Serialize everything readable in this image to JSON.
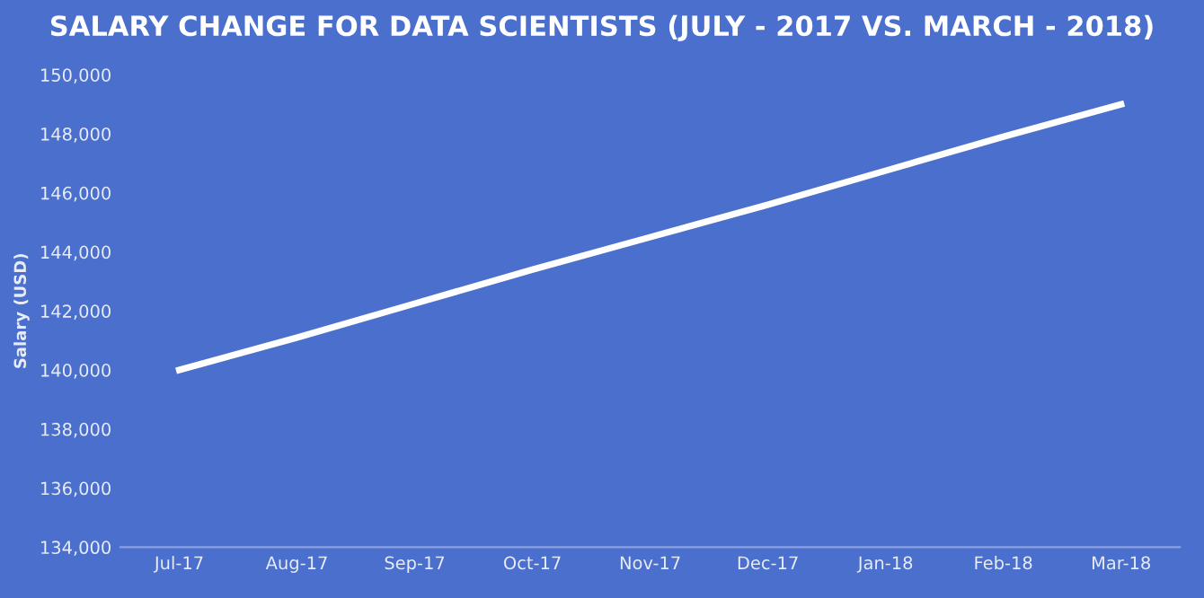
{
  "chart_data": {
    "type": "line",
    "title": "SALARY CHANGE FOR DATA SCIENTISTS (JULY - 2017 VS. MARCH - 2018)",
    "ylabel": "Salary (USD)",
    "categories": [
      "Jul-17",
      "Aug-17",
      "Sep-17",
      "Oct-17",
      "Nov-17",
      "Dec-17",
      "Jan-18",
      "Feb-18",
      "Mar-18"
    ],
    "series": [
      {
        "color": "#ffffff",
        "values": [
          140000,
          141100,
          142250,
          143400,
          144500,
          145600,
          146750,
          147900,
          149000
        ]
      }
    ],
    "ylim": [
      134000,
      150000
    ],
    "yticks": [
      {
        "value": 134000,
        "label": "134,000"
      },
      {
        "value": 136000,
        "label": "136,000"
      },
      {
        "value": 138000,
        "label": "138,000"
      },
      {
        "value": 140000,
        "label": "140,000"
      },
      {
        "value": 142000,
        "label": "142,000"
      },
      {
        "value": 144000,
        "label": "144,000"
      },
      {
        "value": 146000,
        "label": "146,000"
      },
      {
        "value": 148000,
        "label": "148,000"
      },
      {
        "value": 150000,
        "label": "150,000"
      }
    ],
    "grid": false,
    "marker": "none",
    "line_style": "solid"
  }
}
